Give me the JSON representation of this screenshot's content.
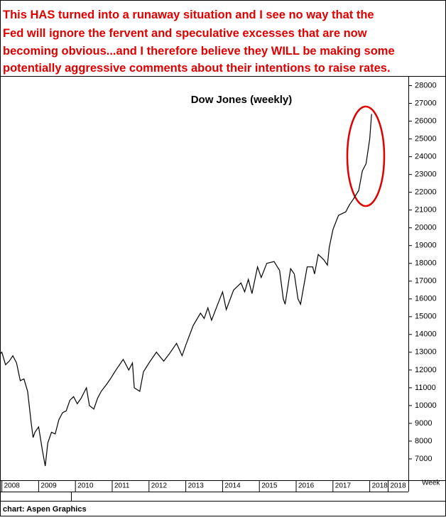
{
  "chart_data": {
    "type": "line",
    "annotation_lines": [
      "This HAS turned into a runaway situation and I see no way that the",
      "Fed will ignore the fervent and speculative excesses that are now",
      "becoming obvious...and I therefore believe they WILL be making some",
      "potentially aggressive comments about their intentions to raise rates."
    ],
    "title": "Dow Jones (weekly)",
    "xlabel": "Week",
    "source": "chart: Aspen Graphics",
    "x": [
      2007.95,
      2008.0,
      2008.1,
      2008.2,
      2008.3,
      2008.4,
      2008.5,
      2008.6,
      2008.7,
      2008.8,
      2008.85,
      2008.9,
      2009.0,
      2009.1,
      2009.18,
      2009.25,
      2009.35,
      2009.45,
      2009.55,
      2009.65,
      2009.75,
      2009.85,
      2009.95,
      2010.05,
      2010.15,
      2010.3,
      2010.38,
      2010.5,
      2010.6,
      2010.7,
      2010.85,
      2010.95,
      2011.1,
      2011.3,
      2011.45,
      2011.55,
      2011.6,
      2011.75,
      2011.85,
      2012.0,
      2012.2,
      2012.4,
      2012.55,
      2012.75,
      2012.9,
      2013.0,
      2013.2,
      2013.4,
      2013.5,
      2013.6,
      2013.7,
      2013.85,
      2014.0,
      2014.1,
      2014.3,
      2014.5,
      2014.6,
      2014.7,
      2014.8,
      2014.95,
      2015.05,
      2015.2,
      2015.4,
      2015.55,
      2015.65,
      2015.7,
      2015.85,
      2015.95,
      2016.05,
      2016.12,
      2016.3,
      2016.45,
      2016.5,
      2016.6,
      2016.75,
      2016.85,
      2016.9,
      2017.0,
      2017.15,
      2017.35,
      2017.45,
      2017.55,
      2017.7,
      2017.8,
      2017.9,
      2017.95,
      2018.0,
      2018.05
    ],
    "series": [
      {
        "name": "Dow Jones",
        "color": "#000000",
        "values": [
          12900,
          13000,
          12300,
          12500,
          12800,
          12400,
          11400,
          11500,
          10800,
          9000,
          8200,
          8500,
          8800,
          7500,
          6600,
          7900,
          8500,
          8400,
          9200,
          9600,
          9700,
          10300,
          10500,
          10100,
          10400,
          11000,
          10000,
          9800,
          10400,
          10800,
          11200,
          11500,
          12000,
          12600,
          12000,
          12400,
          11000,
          10800,
          11900,
          12400,
          13000,
          12500,
          12900,
          13500,
          12800,
          13400,
          14500,
          15200,
          14900,
          15500,
          14800,
          15600,
          16400,
          15400,
          16500,
          16900,
          16400,
          17100,
          16300,
          17800,
          17200,
          18000,
          18100,
          17600,
          16000,
          15700,
          17700,
          17400,
          16000,
          15700,
          17800,
          17800,
          17400,
          18500,
          18200,
          17900,
          18900,
          19900,
          20700,
          20900,
          21300,
          21600,
          22100,
          23200,
          23600,
          24300,
          25000,
          26400
        ]
      }
    ],
    "xlim": [
      2007.95,
      2019.05
    ],
    "xticks": [
      2008,
      2009,
      2010,
      2011,
      2012,
      2013,
      2014,
      2015,
      2016,
      2017,
      2018,
      {
        "value": 2018.5,
        "label": "2018"
      }
    ],
    "ylim": [
      5800,
      28500
    ],
    "yticks": [
      7000,
      8000,
      9000,
      10000,
      11000,
      12000,
      13000,
      14000,
      15000,
      16000,
      17000,
      18000,
      19000,
      20000,
      21000,
      22000,
      23000,
      24000,
      25000,
      26000,
      27000,
      28000
    ],
    "grid": false
  }
}
